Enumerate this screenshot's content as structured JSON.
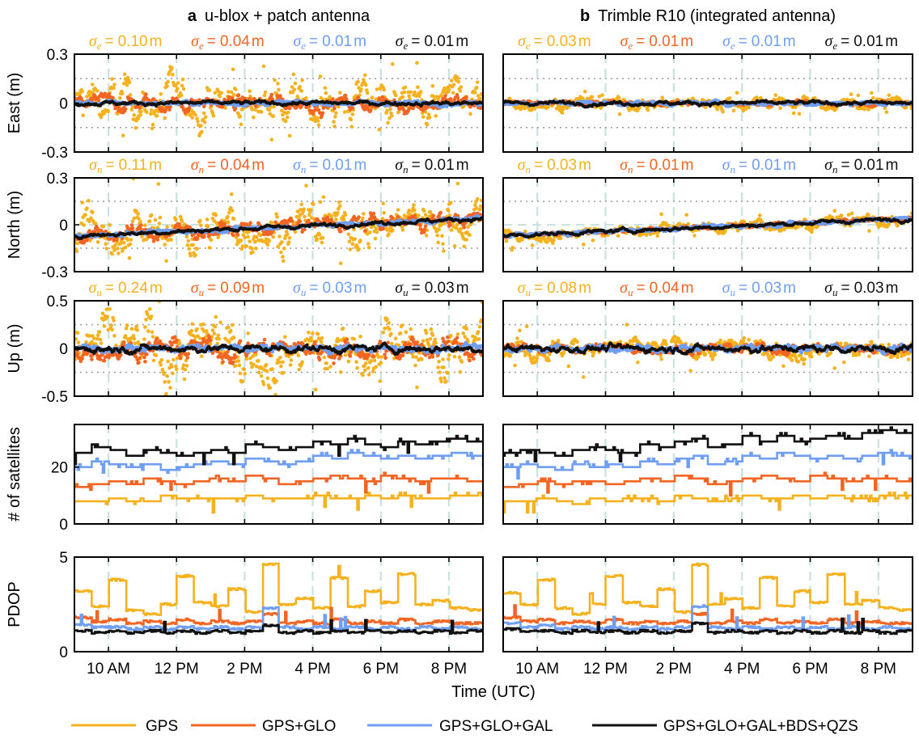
{
  "colors": {
    "GPS": "#f5b21e",
    "GPS+GLO": "#f26522",
    "GPS+GLO+GAL": "#6f9ef2",
    "GPS+GLO+GAL+BDS+QZS": "#111111",
    "grid_vertical": "#c9e2df",
    "grid_dotted": "#9a9a9a"
  },
  "legend": {
    "entries": [
      "GPS",
      "GPS+GLO",
      "GPS+GLO+GAL",
      "GPS+GLO+GAL+BDS+QZS"
    ]
  },
  "xlabel": "Time (UTC)",
  "chart_data": [
    {
      "panel": "a",
      "title": "u-blox + patch antenna",
      "type": "line",
      "subplots": [
        {
          "ylabel": "East (m)",
          "ylim": [
            -0.3,
            0.3
          ],
          "yticks": [
            "0.3",
            "0",
            "-0.3"
          ],
          "ytick_values": [
            0.3,
            0,
            -0.3
          ],
          "ref_lines": [
            0.15,
            -0.15
          ],
          "kind": "scatter",
          "sigma": {
            "symbol": "σ",
            "sub": "e",
            "values": [
              "0.10",
              "0.04",
              "0.01",
              "0.01"
            ],
            "unit": "m"
          }
        },
        {
          "ylabel": "North (m)",
          "ylim": [
            -0.3,
            0.3
          ],
          "yticks": [
            "0.3",
            "0",
            "-0.3"
          ],
          "ytick_values": [
            0.3,
            0,
            -0.3
          ],
          "ref_lines": [
            0.15,
            -0.15
          ],
          "kind": "scatter",
          "sigma": {
            "symbol": "σ",
            "sub": "n",
            "values": [
              "0.11",
              "0.04",
              "0.01",
              "0.01"
            ],
            "unit": "m"
          }
        },
        {
          "ylabel": "Up (m)",
          "ylim": [
            -0.5,
            0.5
          ],
          "yticks": [
            "0.5",
            "0",
            "-0.5"
          ],
          "ytick_values": [
            0.5,
            0,
            -0.5
          ],
          "ref_lines": [
            0.25,
            -0.25
          ],
          "kind": "scatter",
          "sigma": {
            "symbol": "σ",
            "sub": "u",
            "values": [
              "0.24",
              "0.09",
              "0.03",
              "0.03"
            ],
            "unit": "m"
          }
        },
        {
          "ylabel": "# of satellites",
          "ylim": [
            0,
            35
          ],
          "yticks": [
            "20",
            "0"
          ],
          "ytick_values": [
            20,
            0
          ],
          "kind": "step",
          "series": [
            {
              "name": "GPS",
              "values": [
                8,
                8,
                9,
                8,
                8,
                10,
                9,
                9,
                9,
                9,
                10,
                9,
                9,
                9,
                10,
                9,
                9,
                10,
                9,
                10,
                9,
                9,
                10,
                10
              ]
            },
            {
              "name": "GPS+GLO",
              "values": [
                13,
                14,
                15,
                14,
                16,
                15,
                14,
                15,
                16,
                15,
                17,
                16,
                14,
                15,
                16,
                17,
                16,
                15,
                17,
                16,
                15,
                16,
                16,
                15
              ]
            },
            {
              "name": "GPS+GLO+GAL",
              "values": [
                20,
                22,
                21,
                20,
                21,
                19,
                20,
                21,
                22,
                21,
                23,
                22,
                21,
                22,
                24,
                23,
                25,
                24,
                23,
                24,
                23,
                24,
                25,
                24
              ]
            },
            {
              "name": "GPS+GLO+GAL+BDS+QZS",
              "values": [
                25,
                27,
                26,
                24,
                26,
                25,
                24,
                25,
                26,
                25,
                28,
                27,
                26,
                27,
                29,
                28,
                30,
                28,
                27,
                29,
                28,
                29,
                30,
                29
              ]
            }
          ]
        },
        {
          "ylabel": "PDOP",
          "ylim": [
            0,
            5
          ],
          "yticks": [
            "5",
            "0"
          ],
          "ytick_values": [
            5,
            0
          ],
          "kind": "step",
          "series": [
            {
              "name": "GPS",
              "values": [
                3.2,
                2.4,
                3.8,
                2.2,
                2.0,
                2.5,
                4.0,
                2.6,
                2.4,
                3.3,
                2.1,
                4.6,
                2.5,
                2.8,
                2.3,
                3.9,
                2.4,
                3.2,
                2.6,
                4.1,
                2.5,
                2.7,
                2.3,
                2.2
              ]
            },
            {
              "name": "GPS+GLO",
              "values": [
                1.8,
                1.6,
                1.7,
                1.5,
                1.6,
                1.5,
                1.7,
                1.5,
                1.6,
                1.5,
                1.6,
                2.0,
                1.5,
                1.6,
                1.5,
                1.7,
                1.5,
                1.6,
                1.5,
                1.7,
                1.5,
                1.6,
                1.5,
                1.5
              ]
            },
            {
              "name": "GPS+GLO+GAL",
              "values": [
                1.4,
                1.3,
                1.3,
                1.2,
                1.3,
                1.2,
                1.3,
                1.2,
                1.3,
                1.2,
                1.3,
                2.3,
                1.3,
                1.2,
                1.3,
                1.2,
                1.3,
                1.2,
                1.3,
                1.2,
                1.3,
                1.2,
                1.3,
                1.2
              ]
            },
            {
              "name": "GPS+GLO+GAL+BDS+QZS",
              "values": [
                1.1,
                1.0,
                1.1,
                1.0,
                1.1,
                1.0,
                1.1,
                1.0,
                1.1,
                1.0,
                1.1,
                1.4,
                1.0,
                1.1,
                1.0,
                1.1,
                1.0,
                1.1,
                1.0,
                1.1,
                1.0,
                1.1,
                1.0,
                1.1
              ]
            }
          ]
        }
      ]
    },
    {
      "panel": "b",
      "title": "Trimble R10 (integrated antenna)",
      "type": "line",
      "subplots": [
        {
          "ylabel": "",
          "ylim": [
            -0.3,
            0.3
          ],
          "ref_lines": [
            0.15,
            -0.15
          ],
          "kind": "scatter",
          "sigma": {
            "symbol": "σ",
            "sub": "e",
            "values": [
              "0.03",
              "0.01",
              "0.01",
              "0.01"
            ],
            "unit": "m"
          }
        },
        {
          "ylabel": "",
          "ylim": [
            -0.3,
            0.3
          ],
          "ref_lines": [
            0.15,
            -0.15
          ],
          "kind": "scatter",
          "sigma": {
            "symbol": "σ",
            "sub": "n",
            "values": [
              "0.03",
              "0.01",
              "0.01",
              "0.01"
            ],
            "unit": "m"
          }
        },
        {
          "ylabel": "",
          "ylim": [
            -0.5,
            0.5
          ],
          "ref_lines": [
            0.25,
            -0.25
          ],
          "kind": "scatter",
          "sigma": {
            "symbol": "σ",
            "sub": "u",
            "values": [
              "0.08",
              "0.04",
              "0.03",
              "0.03"
            ],
            "unit": "m"
          }
        },
        {
          "ylabel": "",
          "ylim": [
            0,
            35
          ],
          "kind": "step",
          "series": [
            {
              "name": "GPS",
              "values": [
                8,
                8,
                9,
                8,
                7,
                9,
                8,
                9,
                9,
                8,
                10,
                9,
                8,
                9,
                10,
                9,
                9,
                10,
                9,
                10,
                9,
                9,
                10,
                10
              ]
            },
            {
              "name": "GPS+GLO",
              "values": [
                13,
                14,
                15,
                14,
                15,
                15,
                14,
                15,
                16,
                15,
                17,
                16,
                14,
                15,
                16,
                17,
                16,
                15,
                17,
                16,
                15,
                16,
                16,
                15
              ]
            },
            {
              "name": "GPS+GLO+GAL",
              "values": [
                20,
                21,
                20,
                19,
                21,
                20,
                21,
                20,
                22,
                21,
                23,
                24,
                21,
                22,
                24,
                23,
                25,
                24,
                23,
                24,
                23,
                24,
                25,
                24
              ]
            },
            {
              "name": "GPS+GLO+GAL+BDS+QZS",
              "values": [
                25,
                26,
                25,
                24,
                26,
                27,
                26,
                25,
                28,
                27,
                29,
                30,
                27,
                28,
                31,
                29,
                31,
                29,
                30,
                31,
                30,
                32,
                33,
                32
              ]
            }
          ]
        },
        {
          "ylabel": "",
          "ylim": [
            0,
            5
          ],
          "kind": "step",
          "series": [
            {
              "name": "GPS",
              "values": [
                3.1,
                2.5,
                3.8,
                2.3,
                2.0,
                2.5,
                4.0,
                2.6,
                2.4,
                3.3,
                2.1,
                4.6,
                2.5,
                2.8,
                2.3,
                3.9,
                2.4,
                3.2,
                2.6,
                4.1,
                2.5,
                2.7,
                2.3,
                2.2
              ]
            },
            {
              "name": "GPS+GLO",
              "values": [
                1.8,
                1.6,
                1.7,
                1.5,
                1.6,
                1.5,
                1.7,
                1.5,
                1.6,
                1.5,
                1.6,
                2.0,
                1.5,
                1.6,
                1.5,
                1.7,
                1.5,
                1.6,
                1.5,
                1.7,
                1.5,
                1.6,
                1.5,
                1.5
              ]
            },
            {
              "name": "GPS+GLO+GAL",
              "values": [
                1.5,
                1.3,
                1.4,
                1.2,
                1.3,
                1.2,
                1.3,
                1.2,
                1.3,
                1.2,
                1.3,
                2.4,
                1.3,
                1.2,
                1.3,
                1.2,
                1.3,
                1.2,
                1.3,
                1.2,
                1.3,
                1.2,
                1.3,
                1.2
              ]
            },
            {
              "name": "GPS+GLO+GAL+BDS+QZS",
              "values": [
                1.2,
                1.1,
                1.1,
                1.0,
                1.1,
                1.0,
                1.1,
                1.0,
                1.1,
                1.0,
                1.1,
                1.5,
                1.0,
                1.1,
                1.0,
                1.1,
                1.0,
                1.1,
                1.0,
                1.1,
                1.0,
                1.1,
                1.0,
                1.1
              ]
            }
          ]
        }
      ]
    }
  ],
  "x_axis": {
    "range_hours": [
      9.0,
      21.0
    ],
    "ticks": [
      "10 AM",
      "12 PM",
      "2 PM",
      "4 PM",
      "6 PM",
      "8 PM"
    ],
    "tick_hours": [
      10,
      12,
      14,
      16,
      18,
      20
    ]
  }
}
